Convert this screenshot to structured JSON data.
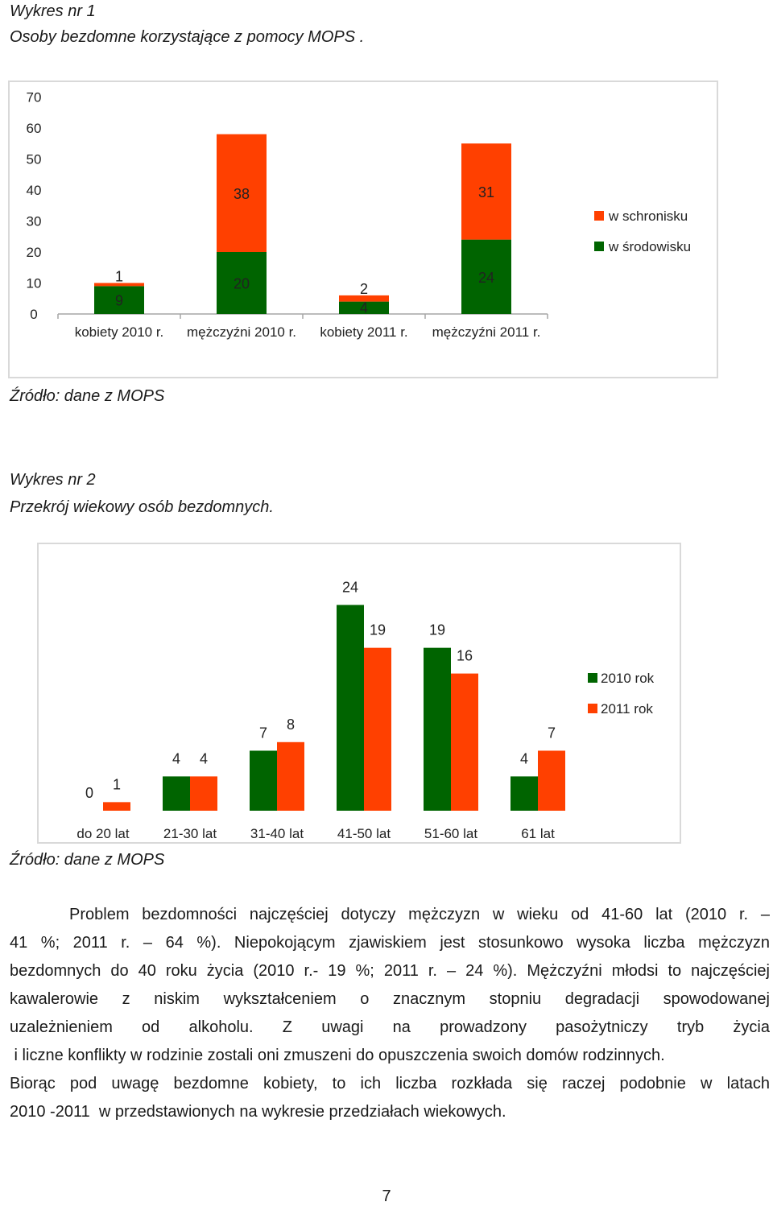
{
  "chart1": {
    "caption_line1": "Wykres nr 1",
    "caption_line2": "Osoby bezdomne korzystające z pomocy MOPS .",
    "source": "Źródło: dane z MOPS",
    "colors": {
      "w_srodowisku": "#006400",
      "w_schronisku": "#ff4000"
    },
    "chart_data": {
      "type": "bar",
      "stacked": true,
      "categories": [
        "kobiety 2010 r.",
        "mężczyźni 2010 r.",
        "kobiety 2011 r.",
        "mężczyźni 2011 r."
      ],
      "series": [
        {
          "name": "w środowisku",
          "values": [
            9,
            20,
            4,
            24
          ]
        },
        {
          "name": "w schronisku",
          "values": [
            1,
            38,
            2,
            31
          ]
        }
      ],
      "ylim": [
        0,
        70
      ],
      "yticks": [
        "0",
        "10",
        "20",
        "30",
        "40",
        "50",
        "60",
        "70"
      ],
      "legend": [
        "w schronisku",
        "w środowisku"
      ],
      "legend_position": "right",
      "grid": false
    }
  },
  "chart2": {
    "caption_line1": "Wykres nr 2",
    "caption_line2": "Przekrój wiekowy osób bezdomnych.",
    "source": "Źródło: dane z MOPS",
    "colors": {
      "y2010": "#006400",
      "y2011": "#ff4000"
    },
    "chart_data": {
      "type": "bar",
      "categories": [
        "do 20 lat",
        "21-30 lat",
        "31-40 lat",
        "41-50 lat",
        "51-60 lat",
        "61 lat"
      ],
      "series": [
        {
          "name": "2010 rok",
          "values": [
            0,
            4,
            7,
            24,
            19,
            4
          ]
        },
        {
          "name": "2011 rok",
          "values": [
            1,
            4,
            8,
            19,
            16,
            7
          ]
        }
      ],
      "ylim": [
        0,
        30
      ],
      "yticks": [
        "0",
        "5",
        "10",
        "15",
        "20",
        "25",
        "30"
      ],
      "legend": [
        "2010 rok",
        "2011 rok"
      ],
      "legend_position": "right",
      "grid": false
    }
  },
  "text": {
    "paragraph1": [
      "Problem bezdomności najczęściej dotyczy mężczyzn w wieku od 41-60 lat (2010 r. –",
      "41 %; 2011 r. – 64 %). Niepokojącym zjawiskiem jest stosunkowo wysoka liczba mężczyzn",
      "bezdomnych do 40 roku życia (2010 r.- 19 %; 2011 r. – 24 %). Mężczyźni młodsi to najczęściej",
      "kawalerowie z niskim wykształceniem o znacznym stopniu degradacji spowodowanej",
      "uzależnieniem od alkoholu. Z uwagi na prowadzony pasożytniczy tryb życia",
      " i liczne konflikty w rodzinie zostali oni zmuszeni do opuszczenia swoich domów rodzinnych."
    ],
    "paragraph2": [
      "Biorąc pod uwagę bezdomne kobiety, to ich liczba rozkłada się raczej podobnie w latach",
      "2010 -2011  w przedstawionych na wykresie przedziałach wiekowych."
    ],
    "page_number": "7"
  }
}
